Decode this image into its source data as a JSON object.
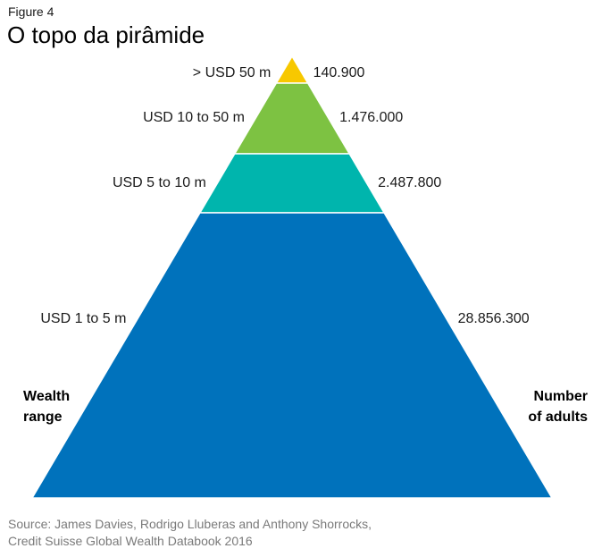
{
  "figure_label": "Figure 4",
  "chart_data": {
    "type": "pyramid",
    "title": "O topo da pirâmide",
    "left_axis_label": [
      "Wealth",
      "range"
    ],
    "right_axis_label": [
      "Number",
      "of adults"
    ],
    "tiers": [
      {
        "range": "> USD 50 m",
        "adults": "140.900",
        "value": 140900,
        "color": "#f7c800"
      },
      {
        "range": "USD 10 to 50 m",
        "adults": "1.476.000",
        "value": 1476000,
        "color": "#7dc242"
      },
      {
        "range": "USD 5 to 10 m",
        "adults": "2.487.800",
        "value": 2487800,
        "color": "#00b5ad"
      },
      {
        "range": "USD 1 to 5 m",
        "adults": "28.856.300",
        "value": 28856300,
        "color": "#0072bc"
      }
    ]
  },
  "source": [
    "Source: James Davies, Rodrigo Lluberas and Anthony Shorrocks,",
    "Credit Suisse Global Wealth Databook 2016"
  ]
}
